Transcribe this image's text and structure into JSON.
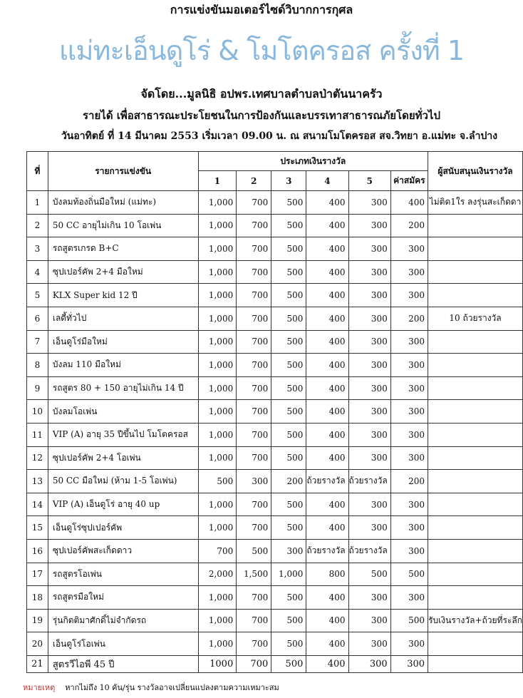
{
  "header": {
    "line1": "การแข่งขันมอเตอร์ไซด์วิบากการกุศล",
    "title": "แม่ทะเอ็นดูโร่ & โมโตครอส ครั้งที่ 1",
    "organizer": "จัดโดย...มูลนิธิ อปพร.เทศบาลตำบลป่าตันนาครัว",
    "purpose": "รายได้ เพื่อสาธารณะประโยชนในการป้องกันและบรรเทาสาธารณภัยโดยทั่วไป",
    "date": "วันอาทิตย์ ที่ 14 มีนาคม 2553 เริ่มเวลา 09.00 น. ณ สนามโมโตครอส สจ.วิทยา อ.แม่ทะ จ.ลำปาง"
  },
  "table": {
    "columns": {
      "no": "ที่",
      "event": "รายการแข่งขัน",
      "prize_group": "ประเภทเงินรางวัล",
      "prizes": [
        "1",
        "2",
        "3",
        "4",
        "5"
      ],
      "fee": "ค่าสมัคร",
      "sponsor": "ผู้สนับสนุนเงินรางวัล"
    },
    "rows": [
      {
        "no": "1",
        "event": "บังลมท้องถิ่นมือใหม่ (แม่ทะ)",
        "prizes": [
          "1,000",
          "700",
          "500",
          "400",
          "300"
        ],
        "fee": "400",
        "sponsor": "ไม่ติด1ใร ลงรุ่นสะเก็ดดา"
      },
      {
        "no": "2",
        "event": "50 CC อายุไม่เกิน 10 โอเพ่น",
        "prizes": [
          "1,000",
          "700",
          "500",
          "400",
          "300"
        ],
        "fee": "200"
      },
      {
        "no": "3",
        "event": "รถสูตรเกรด B+C",
        "prizes": [
          "1,000",
          "700",
          "500",
          "400",
          "300"
        ],
        "fee": "300"
      },
      {
        "no": "4",
        "event": "ซุปเปอร์คัพ 2+4 มือใหม่",
        "prizes": [
          "1,000",
          "700",
          "500",
          "400",
          "300"
        ],
        "fee": "300"
      },
      {
        "no": "5",
        "event": "KLX Super kid 12 ปี",
        "prizes": [
          "1,000",
          "700",
          "500",
          "400",
          "300"
        ],
        "fee": "300"
      },
      {
        "no": "6",
        "event": "เลดี้ทั่วไป",
        "prizes": [
          "1,000",
          "700",
          "500",
          "400",
          "300"
        ],
        "fee": "200",
        "sponsor": "10 ถ้วยรางวัล"
      },
      {
        "no": "7",
        "event": "เอ็นดูโร่มือใหม่",
        "prizes": [
          "1,000",
          "700",
          "500",
          "400",
          "300"
        ],
        "fee": "300"
      },
      {
        "no": "8",
        "event": "บังลม 110 มือใหม่",
        "prizes": [
          "1,000",
          "700",
          "500",
          "400",
          "300"
        ],
        "fee": "300"
      },
      {
        "no": "9",
        "event": "รถสูตร 80 + 150 อายุไม่เกิน 14 ปี",
        "prizes": [
          "1,000",
          "700",
          "500",
          "400",
          "300"
        ],
        "fee": "300"
      },
      {
        "no": "10",
        "event": "บังลมโอเพ่น",
        "prizes": [
          "1,000",
          "700",
          "500",
          "400",
          "300"
        ],
        "fee": "300"
      },
      {
        "no": "11",
        "event": "VIP (A) อายุ 35 ปีขึ้นไป โมโตครอส",
        "prizes": [
          "1,000",
          "700",
          "500",
          "400",
          "300"
        ],
        "fee": "300"
      },
      {
        "no": "12",
        "event": "ซุปเปอร์คัพ 2+4 โอเพ่น",
        "prizes": [
          "1,000",
          "700",
          "500",
          "400",
          "300"
        ],
        "fee": "300"
      },
      {
        "no": "13",
        "event": "50 CC มือใหม่ (ห้าม 1-5 โอเพ่น)",
        "prizes": [
          "500",
          "300",
          "200",
          "ถ้วยรางวัล",
          "ถ้วยรางวัล"
        ],
        "fee": "200"
      },
      {
        "no": "14",
        "event": "VIP (A) เอ็นดูโร่ อายุ 40 up",
        "prizes": [
          "1,000",
          "700",
          "500",
          "400",
          "300"
        ],
        "fee": "300"
      },
      {
        "no": "15",
        "event": "เอ็นดูโร่ซุปเปอร์คัพ",
        "prizes": [
          "1,000",
          "700",
          "500",
          "400",
          "300"
        ],
        "fee": "300"
      },
      {
        "no": "16",
        "event": "ซุปเปอร์คัพสะเก็ดดาว",
        "prizes": [
          "700",
          "500",
          "300",
          "ถ้วยรางวัล",
          "ถ้วยรางวัล"
        ],
        "fee": "300"
      },
      {
        "no": "17",
        "event": "รถสูตรโอเพ่น",
        "prizes": [
          "2,000",
          "1,500",
          "1,000",
          "800",
          "500"
        ],
        "fee": "500"
      },
      {
        "no": "18",
        "event": "รถสูตรมือใหม่",
        "prizes": [
          "1,000",
          "700",
          "500",
          "400",
          "300"
        ],
        "fee": "300"
      },
      {
        "no": "19",
        "event": "รุ่นกิตติมาศักดิ์ไม่จำกัดรถ",
        "prizes": [
          "1,000",
          "700",
          "500",
          "400",
          "300"
        ],
        "fee": "500",
        "sponsor": "รับเงินรางวัล+ถ้วยที่ระลึก"
      },
      {
        "no": "20",
        "event": "เอ็นดูโร่โอเพ่น",
        "prizes": [
          "1,000",
          "700",
          "500",
          "400",
          "300"
        ],
        "fee": "300"
      },
      {
        "no": "21",
        "event": "สูตรวีไอพี 45 ปี",
        "prizes": [
          "1000",
          "700",
          "500",
          "400",
          "300"
        ],
        "fee": "300"
      }
    ]
  },
  "footer": {
    "label": "หมายเหตุ",
    "text": "หากไม่ถึง 10 คัน/รุ่น รางวัลอาจเปลี่ยนแปลงตามความเหมาะสม"
  }
}
